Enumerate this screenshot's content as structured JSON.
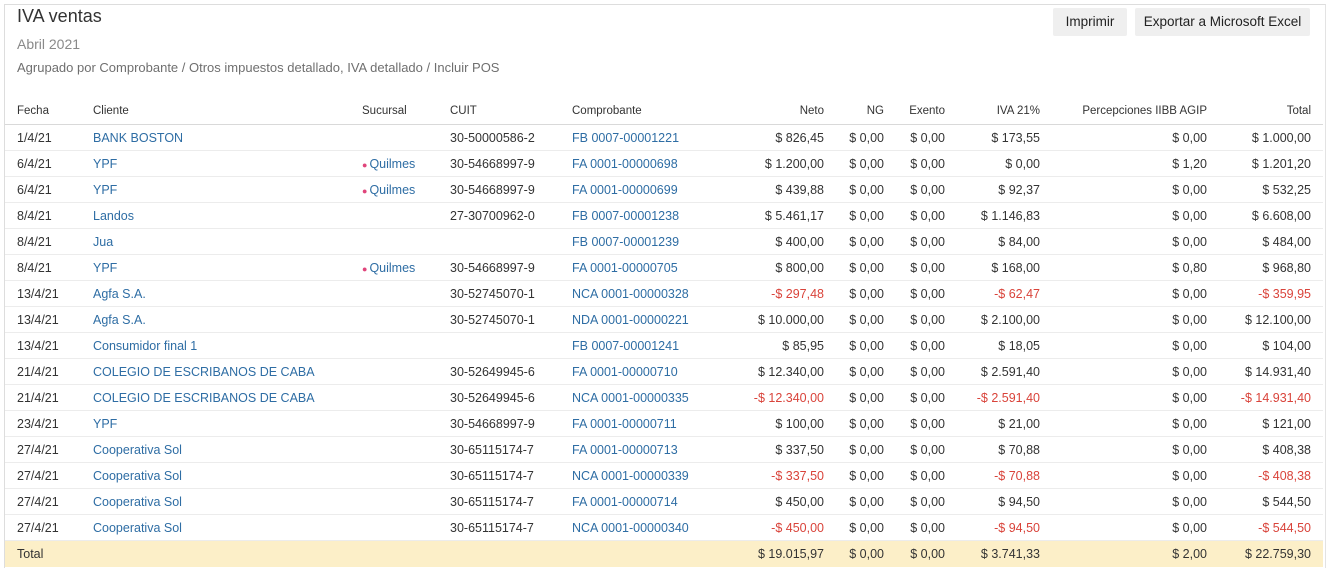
{
  "header": {
    "title": "IVA ventas",
    "period": "Abril 2021",
    "filters": "Agrupado por Comprobante / Otros impuestos detallado, IVA detallado / Incluir POS"
  },
  "actions": {
    "print_label": "Imprimir",
    "excel_label": "Exportar a Microsoft Excel"
  },
  "colors": {
    "link": "#2e6da4",
    "negative": "#d9433a",
    "total_row": "#fcefc8",
    "pin": "#e0457b"
  },
  "table": {
    "columns": {
      "fecha": "Fecha",
      "cliente": "Cliente",
      "sucursal": "Sucursal",
      "cuit": "CUIT",
      "comprobante": "Comprobante",
      "neto": "Neto",
      "ng": "NG",
      "exento": "Exento",
      "iva21": "IVA 21%",
      "percepciones": "Percepciones IIBB AGIP",
      "total": "Total"
    },
    "rows": [
      {
        "fecha": "1/4/21",
        "cliente": "BANK BOSTON",
        "sucursal": "",
        "cuit": "30-50000586-2",
        "comprobante": "FB 0007-00001221",
        "neto": "$ 826,45",
        "ng": "$ 0,00",
        "exento": "$ 0,00",
        "iva21": "$ 173,55",
        "percepciones": "$ 0,00",
        "total": "$ 1.000,00",
        "negative": false
      },
      {
        "fecha": "6/4/21",
        "cliente": "YPF",
        "sucursal": "Quilmes",
        "cuit": "30-54668997-9",
        "comprobante": "FA 0001-00000698",
        "neto": "$ 1.200,00",
        "ng": "$ 0,00",
        "exento": "$ 0,00",
        "iva21": "$ 0,00",
        "percepciones": "$ 1,20",
        "total": "$ 1.201,20",
        "negative": false
      },
      {
        "fecha": "6/4/21",
        "cliente": "YPF",
        "sucursal": "Quilmes",
        "cuit": "30-54668997-9",
        "comprobante": "FA 0001-00000699",
        "neto": "$ 439,88",
        "ng": "$ 0,00",
        "exento": "$ 0,00",
        "iva21": "$ 92,37",
        "percepciones": "$ 0,00",
        "total": "$ 532,25",
        "negative": false
      },
      {
        "fecha": "8/4/21",
        "cliente": "Landos",
        "sucursal": "",
        "cuit": "27-30700962-0",
        "comprobante": "FB 0007-00001238",
        "neto": "$ 5.461,17",
        "ng": "$ 0,00",
        "exento": "$ 0,00",
        "iva21": "$ 1.146,83",
        "percepciones": "$ 0,00",
        "total": "$ 6.608,00",
        "negative": false
      },
      {
        "fecha": "8/4/21",
        "cliente": "Jua",
        "sucursal": "",
        "cuit": "",
        "comprobante": "FB 0007-00001239",
        "neto": "$ 400,00",
        "ng": "$ 0,00",
        "exento": "$ 0,00",
        "iva21": "$ 84,00",
        "percepciones": "$ 0,00",
        "total": "$ 484,00",
        "negative": false
      },
      {
        "fecha": "8/4/21",
        "cliente": "YPF",
        "sucursal": "Quilmes",
        "cuit": "30-54668997-9",
        "comprobante": "FA 0001-00000705",
        "neto": "$ 800,00",
        "ng": "$ 0,00",
        "exento": "$ 0,00",
        "iva21": "$ 168,00",
        "percepciones": "$ 0,80",
        "total": "$ 968,80",
        "negative": false
      },
      {
        "fecha": "13/4/21",
        "cliente": "Agfa S.A.",
        "sucursal": "",
        "cuit": "30-52745070-1",
        "comprobante": "NCA 0001-00000328",
        "neto": "-$ 297,48",
        "ng": "$ 0,00",
        "exento": "$ 0,00",
        "iva21": "-$ 62,47",
        "percepciones": "$ 0,00",
        "total": "-$ 359,95",
        "negative": true
      },
      {
        "fecha": "13/4/21",
        "cliente": "Agfa S.A.",
        "sucursal": "",
        "cuit": "30-52745070-1",
        "comprobante": "NDA 0001-00000221",
        "neto": "$ 10.000,00",
        "ng": "$ 0,00",
        "exento": "$ 0,00",
        "iva21": "$ 2.100,00",
        "percepciones": "$ 0,00",
        "total": "$ 12.100,00",
        "negative": false
      },
      {
        "fecha": "13/4/21",
        "cliente": "Consumidor final 1",
        "sucursal": "",
        "cuit": "",
        "comprobante": "FB 0007-00001241",
        "neto": "$ 85,95",
        "ng": "$ 0,00",
        "exento": "$ 0,00",
        "iva21": "$ 18,05",
        "percepciones": "$ 0,00",
        "total": "$ 104,00",
        "negative": false
      },
      {
        "fecha": "21/4/21",
        "cliente": "COLEGIO DE ESCRIBANOS DE CABA",
        "sucursal": "",
        "cuit": "30-52649945-6",
        "comprobante": "FA 0001-00000710",
        "neto": "$ 12.340,00",
        "ng": "$ 0,00",
        "exento": "$ 0,00",
        "iva21": "$ 2.591,40",
        "percepciones": "$ 0,00",
        "total": "$ 14.931,40",
        "negative": false
      },
      {
        "fecha": "21/4/21",
        "cliente": "COLEGIO DE ESCRIBANOS DE CABA",
        "sucursal": "",
        "cuit": "30-52649945-6",
        "comprobante": "NCA 0001-00000335",
        "neto": "-$ 12.340,00",
        "ng": "$ 0,00",
        "exento": "$ 0,00",
        "iva21": "-$ 2.591,40",
        "percepciones": "$ 0,00",
        "total": "-$ 14.931,40",
        "negative": true
      },
      {
        "fecha": "23/4/21",
        "cliente": "YPF",
        "sucursal": "",
        "cuit": "30-54668997-9",
        "comprobante": "FA 0001-00000711",
        "neto": "$ 100,00",
        "ng": "$ 0,00",
        "exento": "$ 0,00",
        "iva21": "$ 21,00",
        "percepciones": "$ 0,00",
        "total": "$ 121,00",
        "negative": false
      },
      {
        "fecha": "27/4/21",
        "cliente": "Cooperativa Sol",
        "sucursal": "",
        "cuit": "30-65115174-7",
        "comprobante": "FA 0001-00000713",
        "neto": "$ 337,50",
        "ng": "$ 0,00",
        "exento": "$ 0,00",
        "iva21": "$ 70,88",
        "percepciones": "$ 0,00",
        "total": "$ 408,38",
        "negative": false
      },
      {
        "fecha": "27/4/21",
        "cliente": "Cooperativa Sol",
        "sucursal": "",
        "cuit": "30-65115174-7",
        "comprobante": "NCA 0001-00000339",
        "neto": "-$ 337,50",
        "ng": "$ 0,00",
        "exento": "$ 0,00",
        "iva21": "-$ 70,88",
        "percepciones": "$ 0,00",
        "total": "-$ 408,38",
        "negative": true
      },
      {
        "fecha": "27/4/21",
        "cliente": "Cooperativa Sol",
        "sucursal": "",
        "cuit": "30-65115174-7",
        "comprobante": "FA 0001-00000714",
        "neto": "$ 450,00",
        "ng": "$ 0,00",
        "exento": "$ 0,00",
        "iva21": "$ 94,50",
        "percepciones": "$ 0,00",
        "total": "$ 544,50",
        "negative": false
      },
      {
        "fecha": "27/4/21",
        "cliente": "Cooperativa Sol",
        "sucursal": "",
        "cuit": "30-65115174-7",
        "comprobante": "NCA 0001-00000340",
        "neto": "-$ 450,00",
        "ng": "$ 0,00",
        "exento": "$ 0,00",
        "iva21": "-$ 94,50",
        "percepciones": "$ 0,00",
        "total": "-$ 544,50",
        "negative": true
      }
    ],
    "totals": {
      "label": "Total",
      "neto": "$ 19.015,97",
      "ng": "$ 0,00",
      "exento": "$ 0,00",
      "iva21": "$ 3.741,33",
      "percepciones": "$ 2,00",
      "total": "$ 22.759,30"
    }
  }
}
